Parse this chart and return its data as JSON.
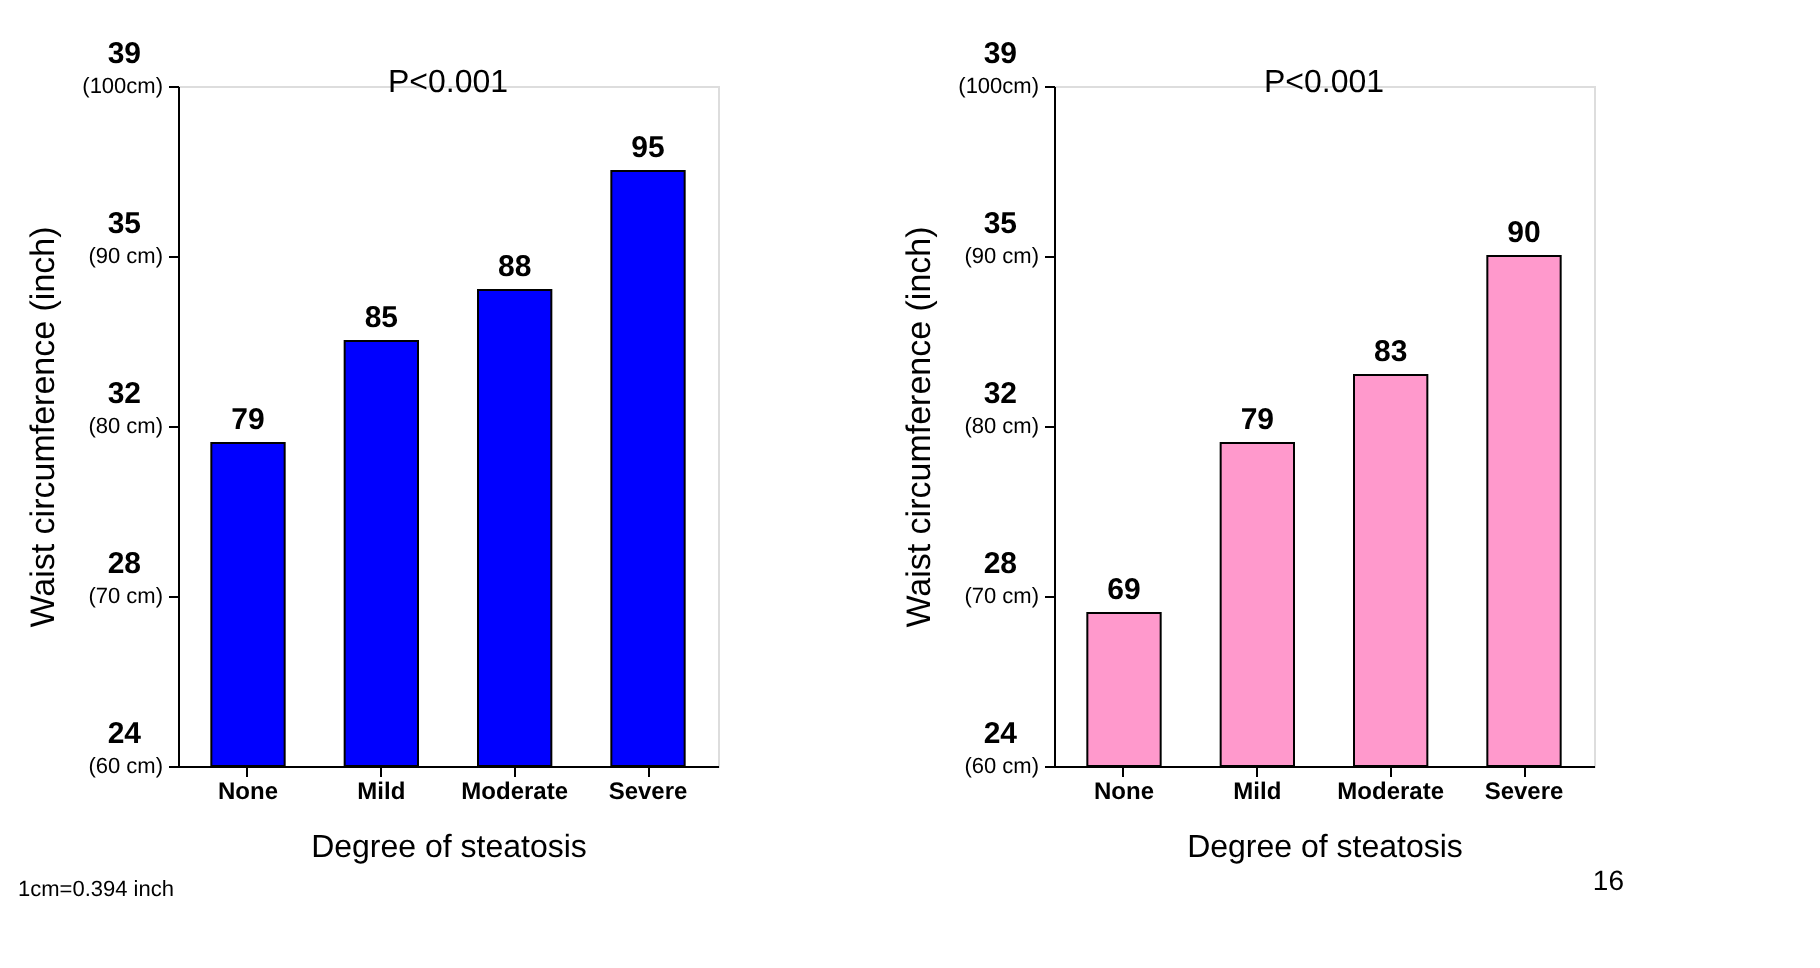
{
  "chart_data": [
    {
      "type": "bar",
      "xlabel": "Degree of steatosis",
      "ylabel": "Waist circumference (inch)",
      "categories": [
        "None",
        "Mild",
        "Moderate",
        "Severe"
      ],
      "series": [
        {
          "color": "#0000ff",
          "values": [
            79,
            85,
            88,
            95
          ]
        }
      ],
      "ylim": [
        60,
        100
      ],
      "yticks": [
        {
          "value": 60,
          "label": "(60 cm)"
        },
        {
          "value": 70,
          "label": "(70 cm)"
        },
        {
          "value": 80,
          "label": "(80 cm)"
        },
        {
          "value": 90,
          "label": "(90 cm)"
        },
        {
          "value": 100,
          "label": "(100cm)"
        }
      ],
      "y2lim": [
        23.62,
        39.37
      ],
      "y2ticks": [
        {
          "value": 23.62,
          "label": "24"
        },
        {
          "value": 27.56,
          "label": "28"
        },
        {
          "value": 31.5,
          "label": "32"
        },
        {
          "value": 35.43,
          "label": "35"
        },
        {
          "value": 39.37,
          "label": "39"
        }
      ],
      "data_labels": true,
      "grid": false,
      "legend": false,
      "annotations": [
        "P<0.001",
        "1cm=0.394 inch"
      ]
    },
    {
      "type": "bar",
      "xlabel": "Degree of steatosis",
      "ylabel": "Waist circumference (inch)",
      "categories": [
        "None",
        "Mild",
        "Moderate",
        "Severe"
      ],
      "series": [
        {
          "color": "#ff99cc",
          "values": [
            69,
            79,
            83,
            90
          ]
        }
      ],
      "ylim": [
        60,
        100
      ],
      "yticks": [
        {
          "value": 60,
          "label": "(60 cm)"
        },
        {
          "value": 70,
          "label": "(70 cm)"
        },
        {
          "value": 80,
          "label": "(80 cm)"
        },
        {
          "value": 90,
          "label": "(90 cm)"
        },
        {
          "value": 100,
          "label": "(100cm)"
        }
      ],
      "y2lim": [
        23.62,
        39.37
      ],
      "y2ticks": [
        {
          "value": 23.62,
          "label": "24"
        },
        {
          "value": 27.56,
          "label": "28"
        },
        {
          "value": 31.5,
          "label": "32"
        },
        {
          "value": 35.43,
          "label": "35"
        },
        {
          "value": 39.37,
          "label": "39"
        }
      ],
      "data_labels": true,
      "grid": false,
      "legend": false,
      "annotations": [
        "P<0.001",
        "16"
      ]
    }
  ]
}
